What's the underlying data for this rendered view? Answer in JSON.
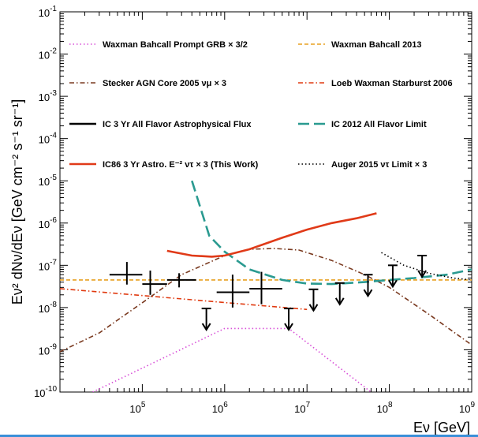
{
  "chart_data": {
    "type": "line",
    "xscale": "log",
    "yscale": "log",
    "xlim": [
      10000,
      1000000000
    ],
    "ylim": [
      1e-10,
      0.1
    ],
    "xlabel": "Eν [GeV]",
    "ylabel": "Eν² dNν/dEν [GeV cm⁻² s⁻¹ sr⁻¹]",
    "xticks": [
      {
        "v": 100000,
        "m": "10",
        "e": "5"
      },
      {
        "v": 1000000,
        "m": "10",
        "e": "6"
      },
      {
        "v": 10000000,
        "m": "10",
        "e": "7"
      },
      {
        "v": 100000000,
        "m": "10",
        "e": "8"
      },
      {
        "v": 1000000000,
        "m": "10",
        "e": "9"
      }
    ],
    "yticks": [
      {
        "v": 1e-10,
        "m": "10",
        "e": "-10"
      },
      {
        "v": 1e-09,
        "m": "10",
        "e": "-9"
      },
      {
        "v": 1e-08,
        "m": "10",
        "e": "-8"
      },
      {
        "v": 1e-07,
        "m": "10",
        "e": "-7"
      },
      {
        "v": 1e-06,
        "m": "10",
        "e": "-6"
      },
      {
        "v": 1e-05,
        "m": "10",
        "e": "-5"
      },
      {
        "v": 0.0001,
        "m": "10",
        "e": "-4"
      },
      {
        "v": 0.001,
        "m": "10",
        "e": "-3"
      },
      {
        "v": 0.01,
        "m": "10",
        "e": "-2"
      },
      {
        "v": 0.1,
        "m": "10",
        "e": "-1"
      }
    ],
    "legend": [
      {
        "label": "Waxman Bahcall Prompt GRB × 3/2",
        "color": "#d84fd8",
        "dash": "dot"
      },
      {
        "label": "Waxman Bahcall 2013",
        "color": "#e8a020",
        "dash": "dash"
      },
      {
        "label": "Stecker AGN Core 2005  νμ × 3",
        "color": "#7a3a20",
        "dash": "dashdot"
      },
      {
        "label": "Loeb Waxman Starburst 2006",
        "color": "#e03a10",
        "dash": "dashdot"
      },
      {
        "label": "IC 3 Yr All Flavor Astrophysical Flux",
        "color": "#000000",
        "dash": "solid"
      },
      {
        "label": "IC 2012 All Flavor Limit",
        "color": "#2a9a90",
        "dash": "longdash"
      },
      {
        "label": "IC86 3 Yr Astro. E⁻² ντ × 3 (This Work)",
        "color": "#e03a18",
        "dash": "solid"
      },
      {
        "label": "Auger 2015  ντ Limit × 3",
        "color": "#000000",
        "dash": "dot"
      }
    ],
    "series": [
      {
        "name": "Waxman Bahcall Prompt GRB × 3/2",
        "color": "#d84fd8",
        "dash": "dot",
        "x": [
          25000,
          1000000,
          6000000,
          60000000
        ],
        "y": [
          1e-10,
          3.2e-09,
          3.2e-09,
          1e-10
        ]
      },
      {
        "name": "Waxman Bahcall 2013",
        "color": "#e8a020",
        "dash": "dash",
        "x": [
          10000,
          1000000000
        ],
        "y": [
          4.5e-08,
          4.5e-08
        ]
      },
      {
        "name": "Stecker AGN Core 2005  νμ × 3",
        "color": "#7a3a20",
        "dash": "dashdot",
        "x": [
          10000,
          30000,
          100000,
          300000,
          1000000,
          2000000,
          4000000,
          8000000,
          20000000,
          50000000,
          100000000,
          300000000,
          1000000000
        ],
        "y": [
          9e-10,
          2.5e-09,
          1.3e-08,
          6e-08,
          1.7e-07,
          2.4e-07,
          2.5e-07,
          2.3e-07,
          1.3e-07,
          6e-08,
          3e-08,
          7e-09,
          1.3e-09
        ]
      },
      {
        "name": "Loeb Waxman Starburst 2006",
        "color": "#e03a10",
        "dash": "dashdot",
        "x": [
          10000,
          10000000
        ],
        "y": [
          2.8e-08,
          9e-09
        ]
      },
      {
        "name": "IC 2012 All Flavor Limit",
        "color": "#2a9a90",
        "dash": "longdash",
        "x": [
          400000,
          650000,
          1000000,
          2000000,
          5000000,
          10000000,
          20000000,
          50000000,
          100000000,
          200000000,
          500000000,
          1000000000
        ],
        "y": [
          1e-05,
          5e-07,
          2.1e-07,
          8e-08,
          4.5e-08,
          3.7e-08,
          3.6e-08,
          4e-08,
          4.5e-08,
          5e-08,
          6e-08,
          8e-08
        ]
      },
      {
        "name": "IC86 3 Yr Astro. E⁻² ντ × 3 (This Work)",
        "color": "#e03a18",
        "dash": "solid",
        "x": [
          200000,
          400000,
          700000,
          1000000,
          2000000,
          5000000,
          10000000,
          20000000,
          40000000,
          70000000
        ],
        "y": [
          2.2e-07,
          1.7e-07,
          1.6e-07,
          1.7e-07,
          2.4e-07,
          4.5e-07,
          7e-07,
          1e-06,
          1.3e-06,
          1.7e-06
        ]
      },
      {
        "name": "Auger 2015  ντ Limit × 3",
        "color": "#000000",
        "dash": "dot",
        "x": [
          80000000,
          150000000,
          300000000,
          600000000,
          1000000000
        ],
        "y": [
          2e-07,
          1e-07,
          6.5e-08,
          5e-08,
          4.5e-08
        ]
      }
    ],
    "crosses": [
      {
        "x": 65000,
        "y": 6e-08,
        "xlo": 40000,
        "xhi": 100000,
        "ylo": 3.5e-08,
        "yhi": 1.2e-07
      },
      {
        "x": 125000,
        "y": 3.6e-08,
        "xlo": 100000,
        "xhi": 200000,
        "ylo": 2e-08,
        "yhi": 7.5e-08
      },
      {
        "x": 280000,
        "y": 4.5e-08,
        "xlo": 200000,
        "xhi": 450000,
        "ylo": 3e-08,
        "yhi": 6.5e-08
      },
      {
        "x": 1250000,
        "y": 2.3e-08,
        "xlo": 800000,
        "xhi": 2000000,
        "ylo": 1e-08,
        "yhi": 6e-08
      },
      {
        "x": 2800000,
        "y": 2.8e-08,
        "xlo": 2000000,
        "xhi": 5000000,
        "ylo": 1.2e-08,
        "yhi": 7e-08
      }
    ],
    "upper_limits": [
      {
        "x": 600000,
        "y": 9.5e-09
      },
      {
        "x": 6000000,
        "y": 9.5e-09
      },
      {
        "x": 12000000,
        "y": 2.7e-08
      },
      {
        "x": 25000000,
        "y": 3.8e-08
      },
      {
        "x": 55000000,
        "y": 6e-08
      },
      {
        "x": 110000000,
        "y": 1e-07
      },
      {
        "x": 250000000,
        "y": 1.7e-07
      }
    ],
    "grid": false
  }
}
